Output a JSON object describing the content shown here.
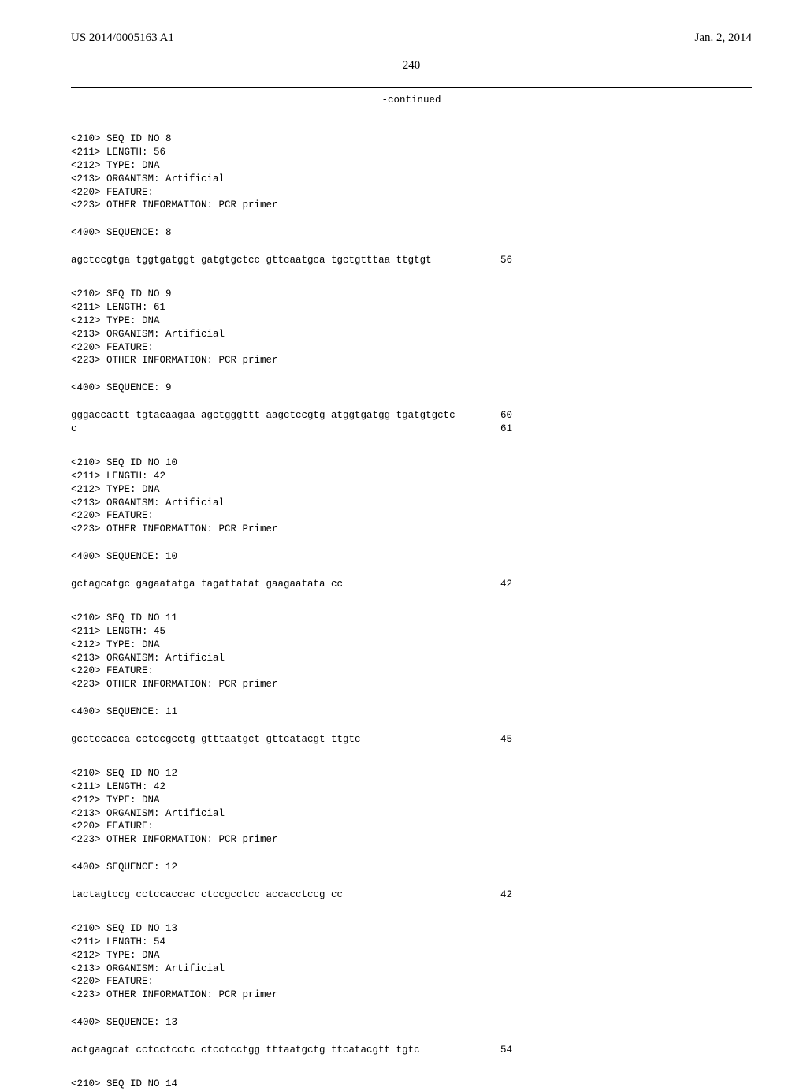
{
  "header": {
    "pubno": "US 2014/0005163 A1",
    "pubdate": "Jan. 2, 2014"
  },
  "pagenum": "240",
  "continued": "-continued",
  "sequences": [
    {
      "id_line": "<210> SEQ ID NO 8",
      "length": "<211> LENGTH: 56",
      "type": "<212> TYPE: DNA",
      "organism": "<213> ORGANISM: Artificial",
      "feature": "<220> FEATURE:",
      "other": "<223> OTHER INFORMATION: PCR primer",
      "seq_label": "<400> SEQUENCE: 8",
      "lines": [
        {
          "seq": "agctccgtga tggtgatggt gatgtgctcc gttcaatgca tgctgtttaa ttgtgt",
          "num": "56"
        }
      ]
    },
    {
      "id_line": "<210> SEQ ID NO 9",
      "length": "<211> LENGTH: 61",
      "type": "<212> TYPE: DNA",
      "organism": "<213> ORGANISM: Artificial",
      "feature": "<220> FEATURE:",
      "other": "<223> OTHER INFORMATION: PCR primer",
      "seq_label": "<400> SEQUENCE: 9",
      "lines": [
        {
          "seq": "gggaccactt tgtacaagaa agctgggttt aagctccgtg atggtgatgg tgatgtgctc",
          "num": "60"
        },
        {
          "seq": "c",
          "num": "61"
        }
      ]
    },
    {
      "id_line": "<210> SEQ ID NO 10",
      "length": "<211> LENGTH: 42",
      "type": "<212> TYPE: DNA",
      "organism": "<213> ORGANISM: Artificial",
      "feature": "<220> FEATURE:",
      "other": "<223> OTHER INFORMATION: PCR Primer",
      "seq_label": "<400> SEQUENCE: 10",
      "lines": [
        {
          "seq": "gctagcatgc gagaatatga tagattatat gaagaatata cc",
          "num": "42"
        }
      ]
    },
    {
      "id_line": "<210> SEQ ID NO 11",
      "length": "<211> LENGTH: 45",
      "type": "<212> TYPE: DNA",
      "organism": "<213> ORGANISM: Artificial",
      "feature": "<220> FEATURE:",
      "other": "<223> OTHER INFORMATION: PCR primer",
      "seq_label": "<400> SEQUENCE: 11",
      "lines": [
        {
          "seq": "gcctccacca cctccgcctg gtttaatgct gttcatacgt ttgtc",
          "num": "45"
        }
      ]
    },
    {
      "id_line": "<210> SEQ ID NO 12",
      "length": "<211> LENGTH: 42",
      "type": "<212> TYPE: DNA",
      "organism": "<213> ORGANISM: Artificial",
      "feature": "<220> FEATURE:",
      "other": "<223> OTHER INFORMATION: PCR primer",
      "seq_label": "<400> SEQUENCE: 12",
      "lines": [
        {
          "seq": "tactagtccg cctccaccac ctccgcctcc accacctccg cc",
          "num": "42"
        }
      ]
    },
    {
      "id_line": "<210> SEQ ID NO 13",
      "length": "<211> LENGTH: 54",
      "type": "<212> TYPE: DNA",
      "organism": "<213> ORGANISM: Artificial",
      "feature": "<220> FEATURE:",
      "other": "<223> OTHER INFORMATION: PCR primer",
      "seq_label": "<400> SEQUENCE: 13",
      "lines": [
        {
          "seq": "actgaagcat cctcctcctc ctcctcctgg tttaatgctg ttcatacgtt tgtc",
          "num": "54"
        }
      ]
    }
  ],
  "trailing": "<210> SEQ ID NO 14"
}
